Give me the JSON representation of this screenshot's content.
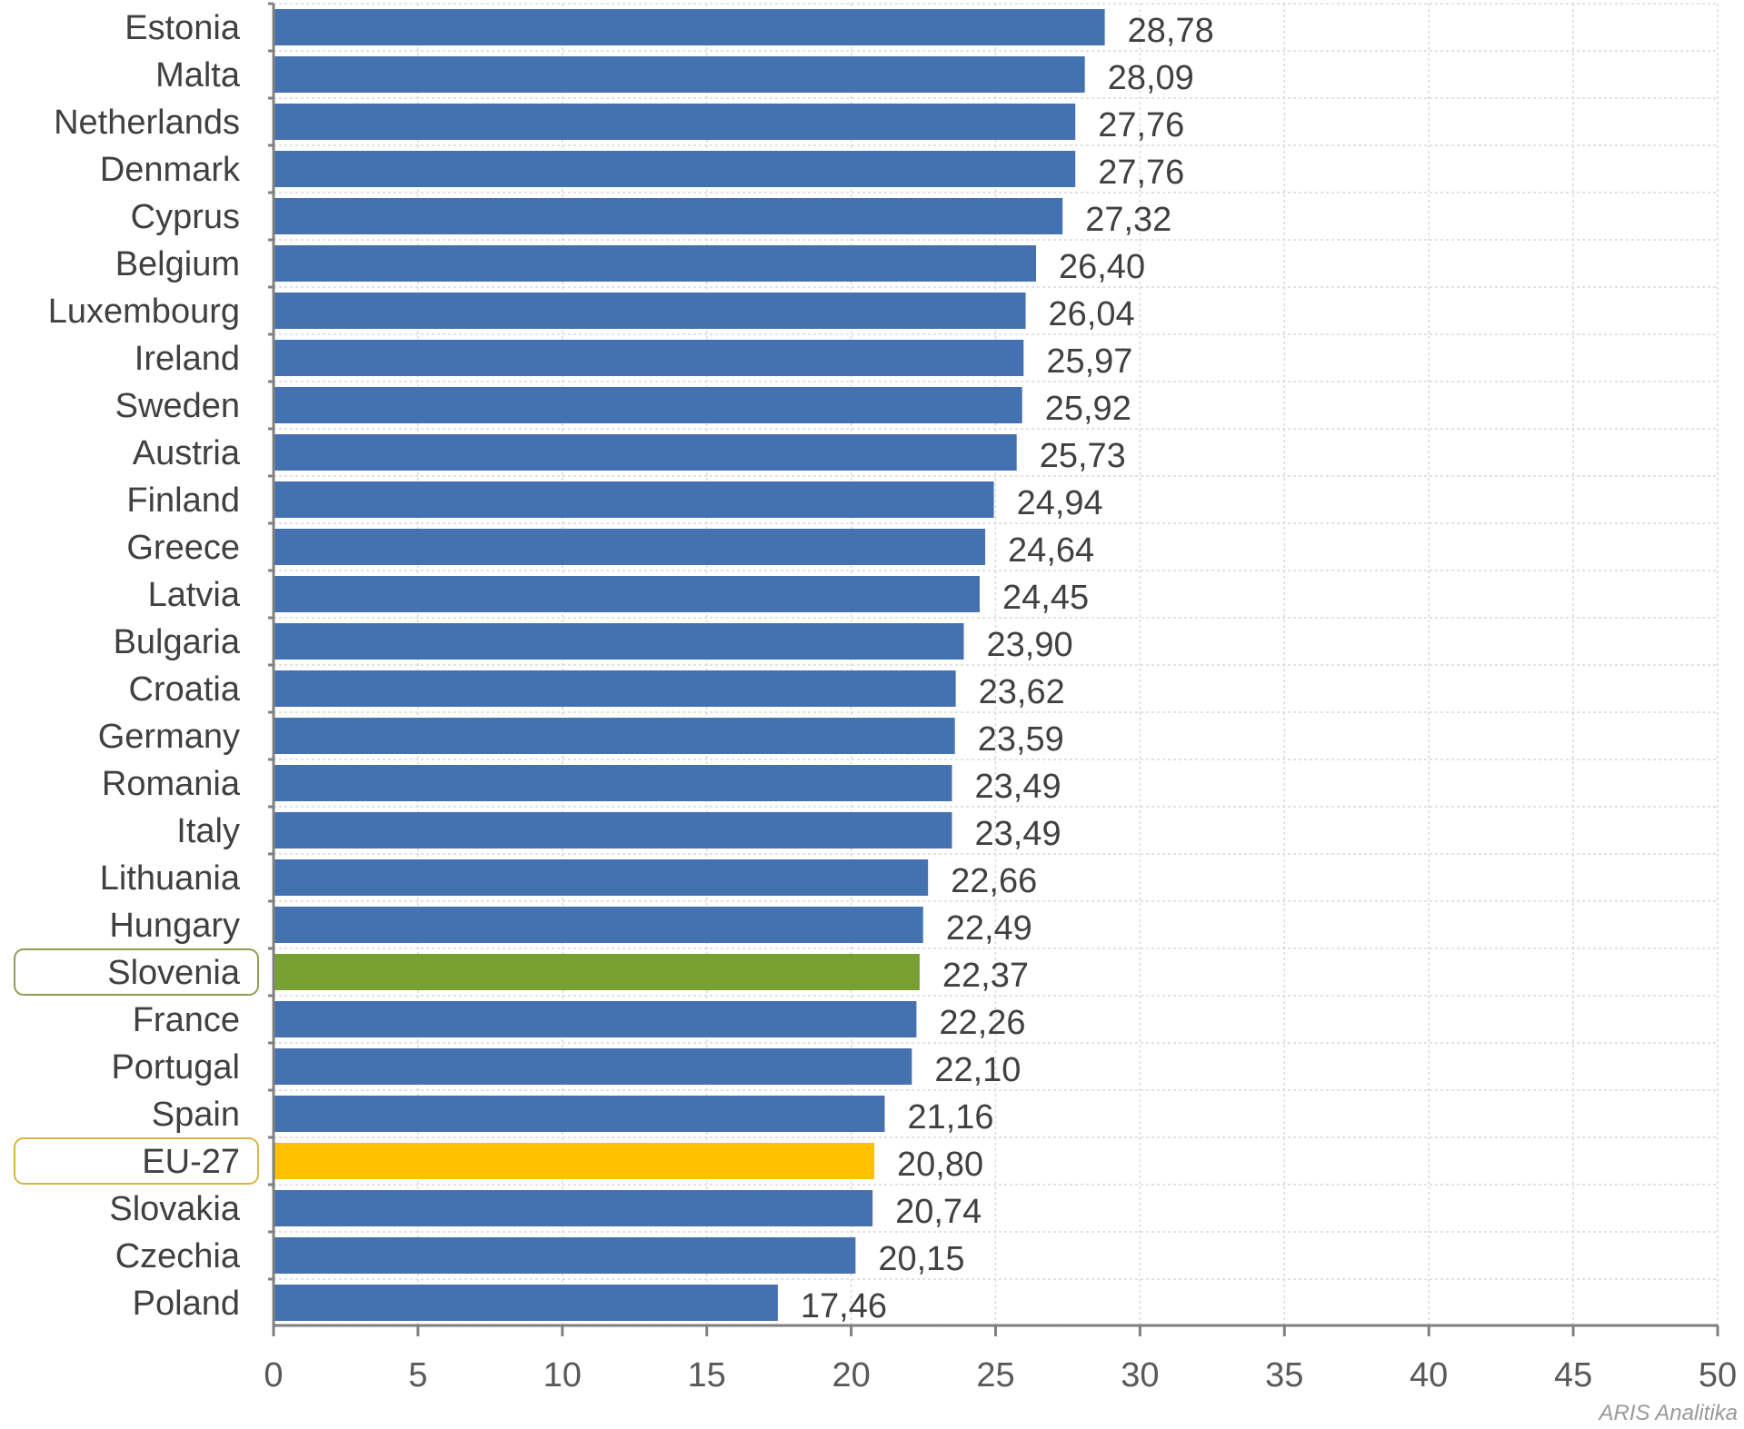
{
  "chart_data": {
    "type": "bar",
    "orientation": "horizontal",
    "categories": [
      "Estonia",
      "Malta",
      "Netherlands",
      "Denmark",
      "Cyprus",
      "Belgium",
      "Luxembourg",
      "Ireland",
      "Sweden",
      "Austria",
      "Finland",
      "Greece",
      "Latvia",
      "Bulgaria",
      "Croatia",
      "Germany",
      "Romania",
      "Italy",
      "Lithuania",
      "Hungary",
      "Slovenia",
      "France",
      "Portugal",
      "Spain",
      "EU-27",
      "Slovakia",
      "Czechia",
      "Poland"
    ],
    "values": [
      28.78,
      28.09,
      27.76,
      27.76,
      27.32,
      26.4,
      26.04,
      25.97,
      25.92,
      25.73,
      24.94,
      24.64,
      24.45,
      23.9,
      23.62,
      23.59,
      23.49,
      23.49,
      22.66,
      22.49,
      22.37,
      22.26,
      22.1,
      21.16,
      20.8,
      20.74,
      20.15,
      17.46
    ],
    "value_labels": [
      "28,78",
      "28,09",
      "27,76",
      "27,76",
      "27,32",
      "26,40",
      "26,04",
      "25,97",
      "25,92",
      "25,73",
      "24,94",
      "24,64",
      "24,45",
      "23,90",
      "23,62",
      "23,59",
      "23,49",
      "23,49",
      "22,66",
      "22,49",
      "22,37",
      "22,26",
      "22,10",
      "21,16",
      "20,80",
      "20,74",
      "20,15",
      "17,46"
    ],
    "xlim": [
      0,
      50
    ],
    "x_ticks": [
      0,
      5,
      10,
      15,
      20,
      25,
      30,
      35,
      40,
      45,
      50
    ],
    "grid": true,
    "title": "",
    "xlabel": "",
    "ylabel": "",
    "colors": {
      "default": "#4472b0",
      "highlight": {
        "Slovenia": "#76a032",
        "EU-27": "#ffc000"
      },
      "highlight_box": {
        "Slovenia": "#8f9d55",
        "EU-27": "#d9b640"
      }
    }
  },
  "source": "ARIS Analitika"
}
